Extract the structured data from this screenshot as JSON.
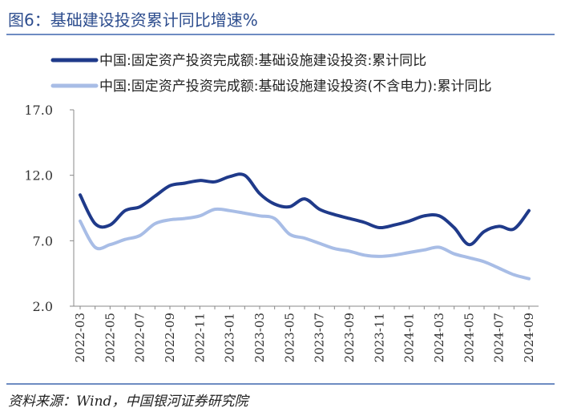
{
  "header": {
    "title": "图6：基础建设投资累计同比增速%"
  },
  "footer": {
    "source": "资料来源：Wind，中国银河证券研究院"
  },
  "chart_data": {
    "type": "line",
    "title": "图6：基础建设投资累计同比增速%",
    "xlabel": "",
    "ylabel": "",
    "ylim": [
      2.0,
      17.0
    ],
    "yticks": [
      "17.0",
      "12.0",
      "7.0",
      "2.0"
    ],
    "ytick_values": [
      17,
      12,
      7,
      2
    ],
    "categories": [
      "2022-03",
      "2022-04",
      "2022-05",
      "2022-06",
      "2022-07",
      "2022-08",
      "2022-09",
      "2022-10",
      "2022-11",
      "2022-12",
      "2023-01",
      "2023-02",
      "2023-03",
      "2023-04",
      "2023-05",
      "2023-06",
      "2023-07",
      "2023-08",
      "2023-09",
      "2023-10",
      "2023-11",
      "2023-12",
      "2024-01",
      "2024-02",
      "2024-03",
      "2024-04",
      "2024-05",
      "2024-06",
      "2024-07",
      "2024-08",
      "2024-09"
    ],
    "xtick_labels": [
      "2022-03",
      "2022-05",
      "2022-07",
      "2022-09",
      "2022-11",
      "2023-01",
      "2023-03",
      "2023-05",
      "2023-07",
      "2023-09",
      "2023-11",
      "2024-01",
      "2024-03",
      "2024-05",
      "2024-07",
      "2024-09"
    ],
    "series": [
      {
        "name": "中国:固定资产投资完成额:基础设施建设投资:累计同比",
        "color": "#1f3a8a",
        "values": [
          10.5,
          8.3,
          8.2,
          9.3,
          9.6,
          10.4,
          11.2,
          11.4,
          11.6,
          11.5,
          11.9,
          12.0,
          10.6,
          9.8,
          9.6,
          10.2,
          9.4,
          9.0,
          8.7,
          8.4,
          8.0,
          8.2,
          8.5,
          8.9,
          8.9,
          8.0,
          6.7,
          7.7,
          8.1,
          7.9,
          9.3
        ]
      },
      {
        "name": "中国:固定资产投资完成额:基础设施建设投资(不含电力):累计同比",
        "color": "#a8bde6",
        "values": [
          8.5,
          6.5,
          6.7,
          7.1,
          7.4,
          8.3,
          8.6,
          8.7,
          8.9,
          9.4,
          9.3,
          9.1,
          8.9,
          8.7,
          7.5,
          7.2,
          6.8,
          6.4,
          6.2,
          5.9,
          5.8,
          5.9,
          6.1,
          6.3,
          6.5,
          6.0,
          5.7,
          5.4,
          4.9,
          4.4,
          4.1
        ]
      }
    ],
    "legend": "top"
  }
}
